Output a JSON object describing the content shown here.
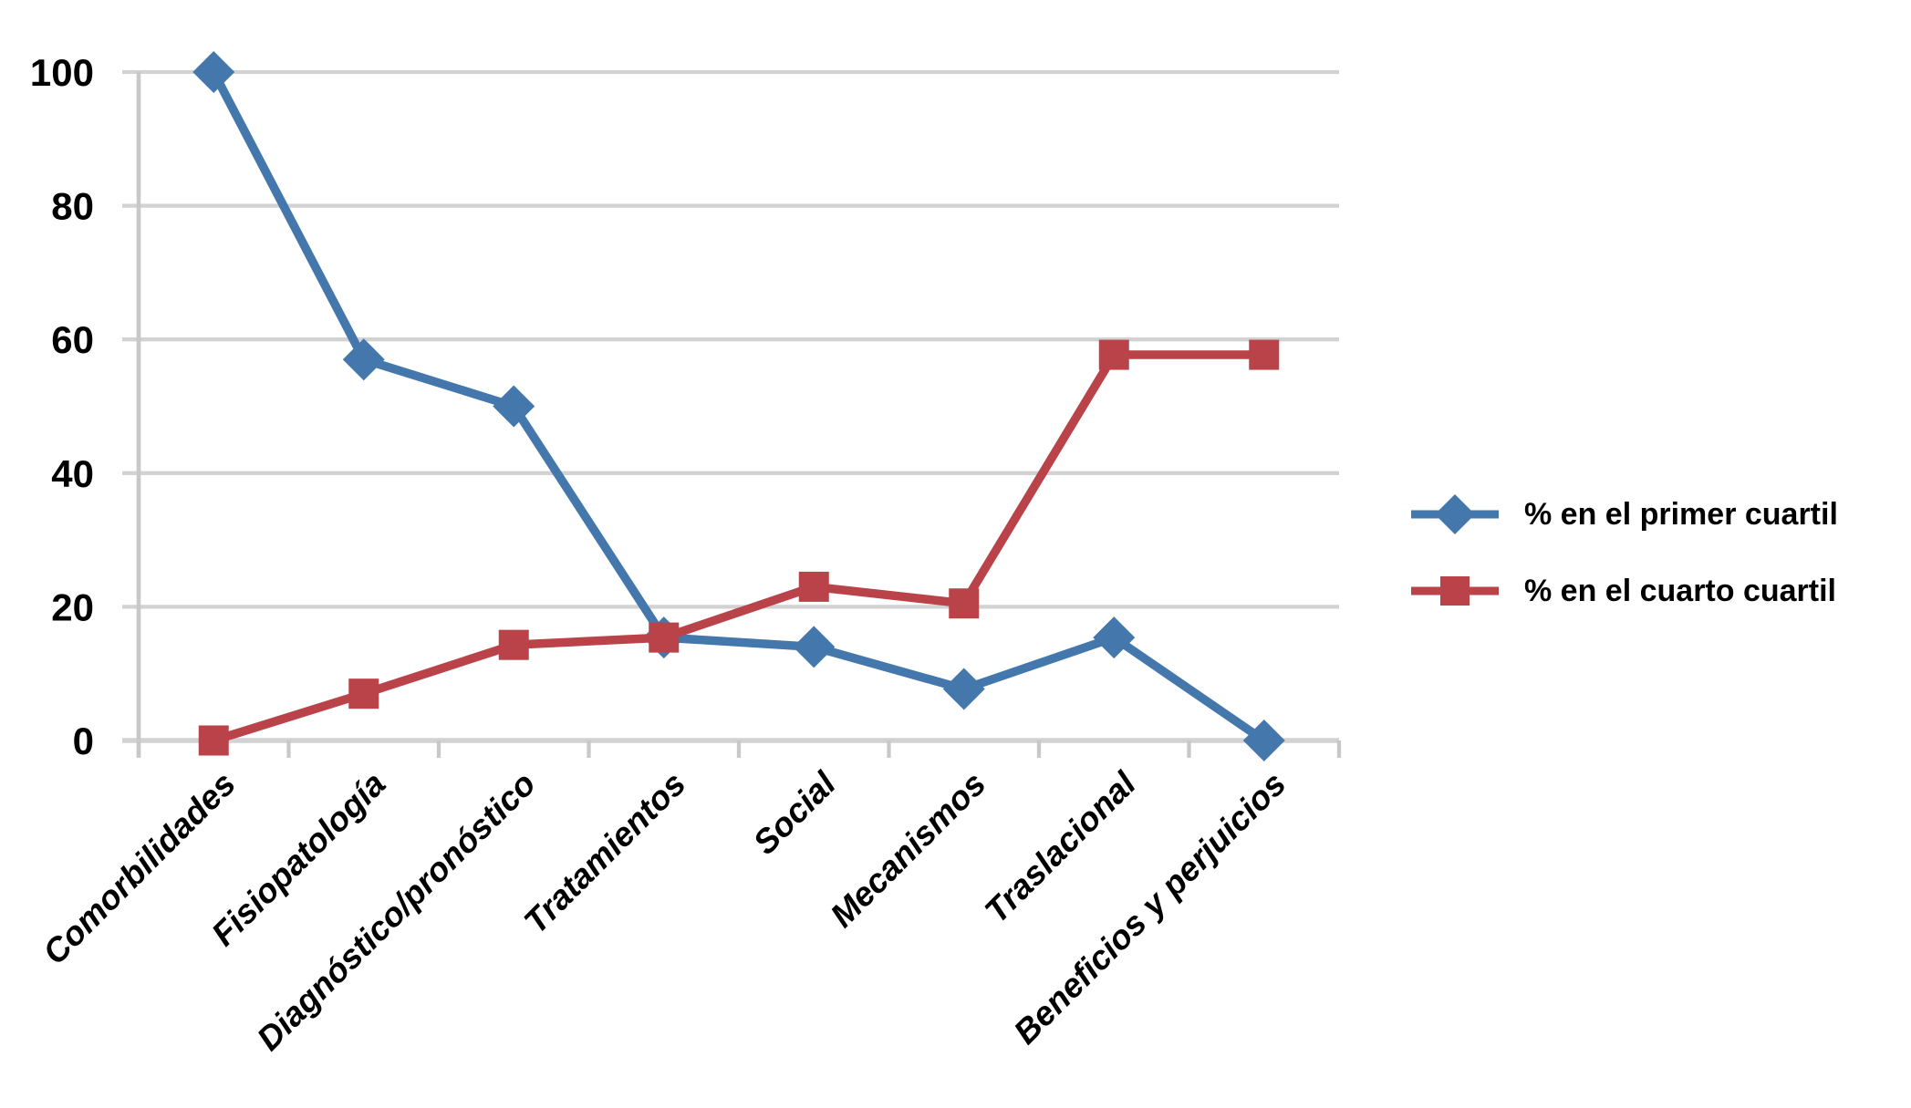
{
  "chart_data": {
    "type": "line",
    "title": "",
    "xlabel": "",
    "ylabel": "",
    "categories": [
      "Comorbilidades",
      "Fisiopatología",
      "Diagnóstico/pronóstico",
      "Tratamientos",
      "Social",
      "Mecanismos",
      "Traslacional",
      "Beneficios y perjuicios"
    ],
    "series": [
      {
        "name": "% en el primer cuartil",
        "marker": "diamond",
        "color": "#4478AD",
        "values": [
          100,
          57,
          50,
          15.4,
          14,
          7.7,
          15.4,
          0
        ]
      },
      {
        "name": "% en el cuarto cuartil",
        "marker": "square",
        "color": "#B94348",
        "values": [
          0,
          7,
          14.3,
          15.4,
          23,
          20.5,
          57.7,
          57.7
        ]
      }
    ],
    "ylim": [
      0,
      100
    ],
    "yticks": [
      0,
      20,
      40,
      60,
      80,
      100
    ],
    "grid": true,
    "legend_position": "right",
    "gridline_color": "#D2D2D2",
    "axis_color": "#C8C8C8",
    "label_color": "#000000"
  }
}
